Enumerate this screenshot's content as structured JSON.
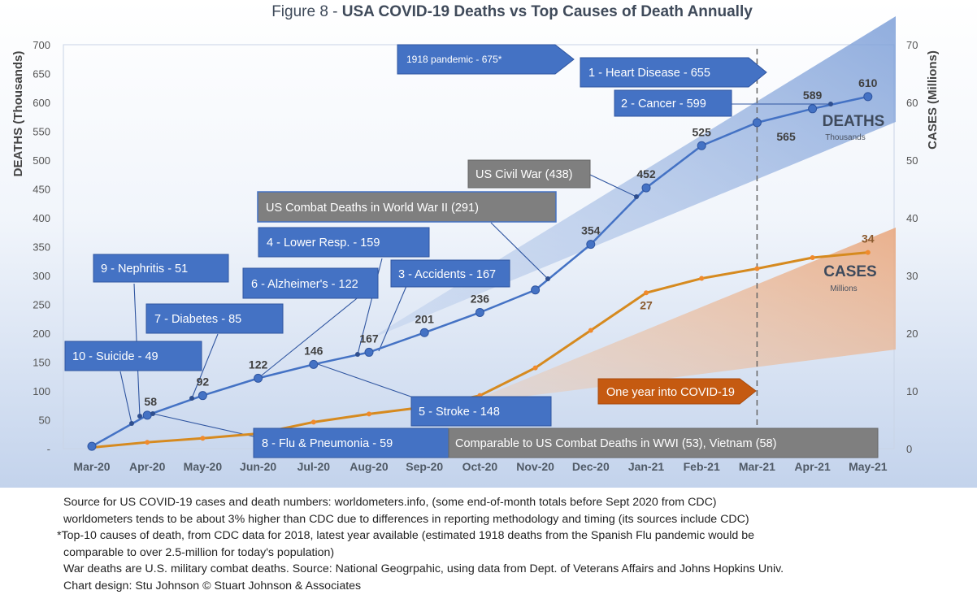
{
  "title": {
    "prefix": "Figure 8 - ",
    "main": "USA COVID-19 Deaths vs Top Causes of Death Annually"
  },
  "y_axis_left_label": {
    "bold": "DEATHS",
    "rest": " (Thousands)"
  },
  "y_axis_right_label": {
    "bold": "CASES",
    "rest": " (Millions)"
  },
  "left_ticks": [
    "-",
    "50",
    "100",
    "150",
    "200",
    "250",
    "300",
    "350",
    "400",
    "450",
    "500",
    "550",
    "600",
    "650",
    "700"
  ],
  "right_ticks": [
    "0",
    "10",
    "20",
    "30",
    "40",
    "50",
    "60",
    "70"
  ],
  "series_tags": {
    "deaths": "DEATHS",
    "deaths_unit": "Thousands",
    "cases": "CASES",
    "cases_unit": "Millions"
  },
  "chart_data": {
    "type": "line",
    "categories": [
      "Mar-20",
      "Apr-20",
      "May-20",
      "Jun-20",
      "Jul-20",
      "Aug-20",
      "Sep-20",
      "Oct-20",
      "Nov-20",
      "Dec-20",
      "Jan-21",
      "Feb-21",
      "Mar-21",
      "Apr-21",
      "May-21"
    ],
    "ylim_left": [
      0,
      700
    ],
    "ylim_right": [
      0,
      70
    ],
    "reference_line": "Mar-21",
    "series": [
      {
        "name": "DEATHS",
        "axis": "left",
        "color": "#4472c4",
        "values": [
          4,
          58,
          92,
          122,
          146,
          167,
          201,
          236,
          275,
          354,
          452,
          525,
          565,
          589,
          610
        ],
        "labels": [
          "",
          "58",
          "92",
          "122",
          "146",
          "167",
          "201",
          "236",
          "",
          "354",
          "452",
          "525",
          "565",
          "589",
          "610"
        ]
      },
      {
        "name": "CASES",
        "axis": "right",
        "color": "#d97b1a",
        "values": [
          0.2,
          1.1,
          1.8,
          2.6,
          4.6,
          6.0,
          7.2,
          9.2,
          14.0,
          20.5,
          27,
          29.5,
          31.2,
          33.1,
          34
        ],
        "labels": [
          "",
          "",
          "",
          "",
          "",
          "",
          "",
          "",
          "",
          "",
          "27",
          "",
          "",
          "",
          "34"
        ]
      }
    ],
    "annotations": [
      {
        "label": "1918 pandemic - 675*",
        "kind": "arrow",
        "value": 675
      },
      {
        "label": "1 - Heart Disease - 655",
        "kind": "arrow",
        "value": 655
      },
      {
        "label": "2 - Cancer - 599",
        "kind": "cause",
        "value": 599
      },
      {
        "label": "US Civil War (438)",
        "kind": "war",
        "value": 438
      },
      {
        "label": "US Combat Deaths in World War II (291)",
        "kind": "war",
        "value": 291
      },
      {
        "label": "4 - Lower Resp.  - 159",
        "kind": "cause",
        "value": 159
      },
      {
        "label": "3 - Accidents - 167",
        "kind": "cause",
        "value": 167
      },
      {
        "label": "9 - Nephritis - 51",
        "kind": "cause",
        "value": 51
      },
      {
        "label": "6 - Alzheimer's - 122",
        "kind": "cause",
        "value": 122
      },
      {
        "label": "7 - Diabetes - 85",
        "kind": "cause",
        "value": 85
      },
      {
        "label": "10 - Suicide - 49",
        "kind": "cause",
        "value": 49
      },
      {
        "label": "5 -  Stroke - 148",
        "kind": "cause",
        "value": 148
      },
      {
        "label": "8 - Flu & Pneumonia - 59",
        "kind": "cause",
        "value": 59
      },
      {
        "label": "Comparable to US Combat Deaths in WWI (53), Vietnam (58)",
        "kind": "war"
      },
      {
        "label": "One year into COVID-19",
        "kind": "arrow-orange"
      }
    ]
  },
  "notes": [
    "Source for US COVID-19 cases and death numbers: worldometers.info, (some end-of-month totals before Sept 2020 from CDC)",
    "worldometers tends to be about 3% higher than CDC due to differences in reporting methodology and timing (its sources include CDC)",
    "*Top-10 causes of death, from CDC data for 2018, latest year available  (estimated 1918 deaths from the Spanish Flu pandemic would be",
    "   comparable to over 2.5-million for today's population)",
    "War deaths are U.S. military combat deaths.  Source: National Geogrpahic, using data from Dept. of Veterans Affairs and Johns Hopkins Univ.",
    "Chart design: Stu Johnson © Stuart Johnson & Associates"
  ]
}
